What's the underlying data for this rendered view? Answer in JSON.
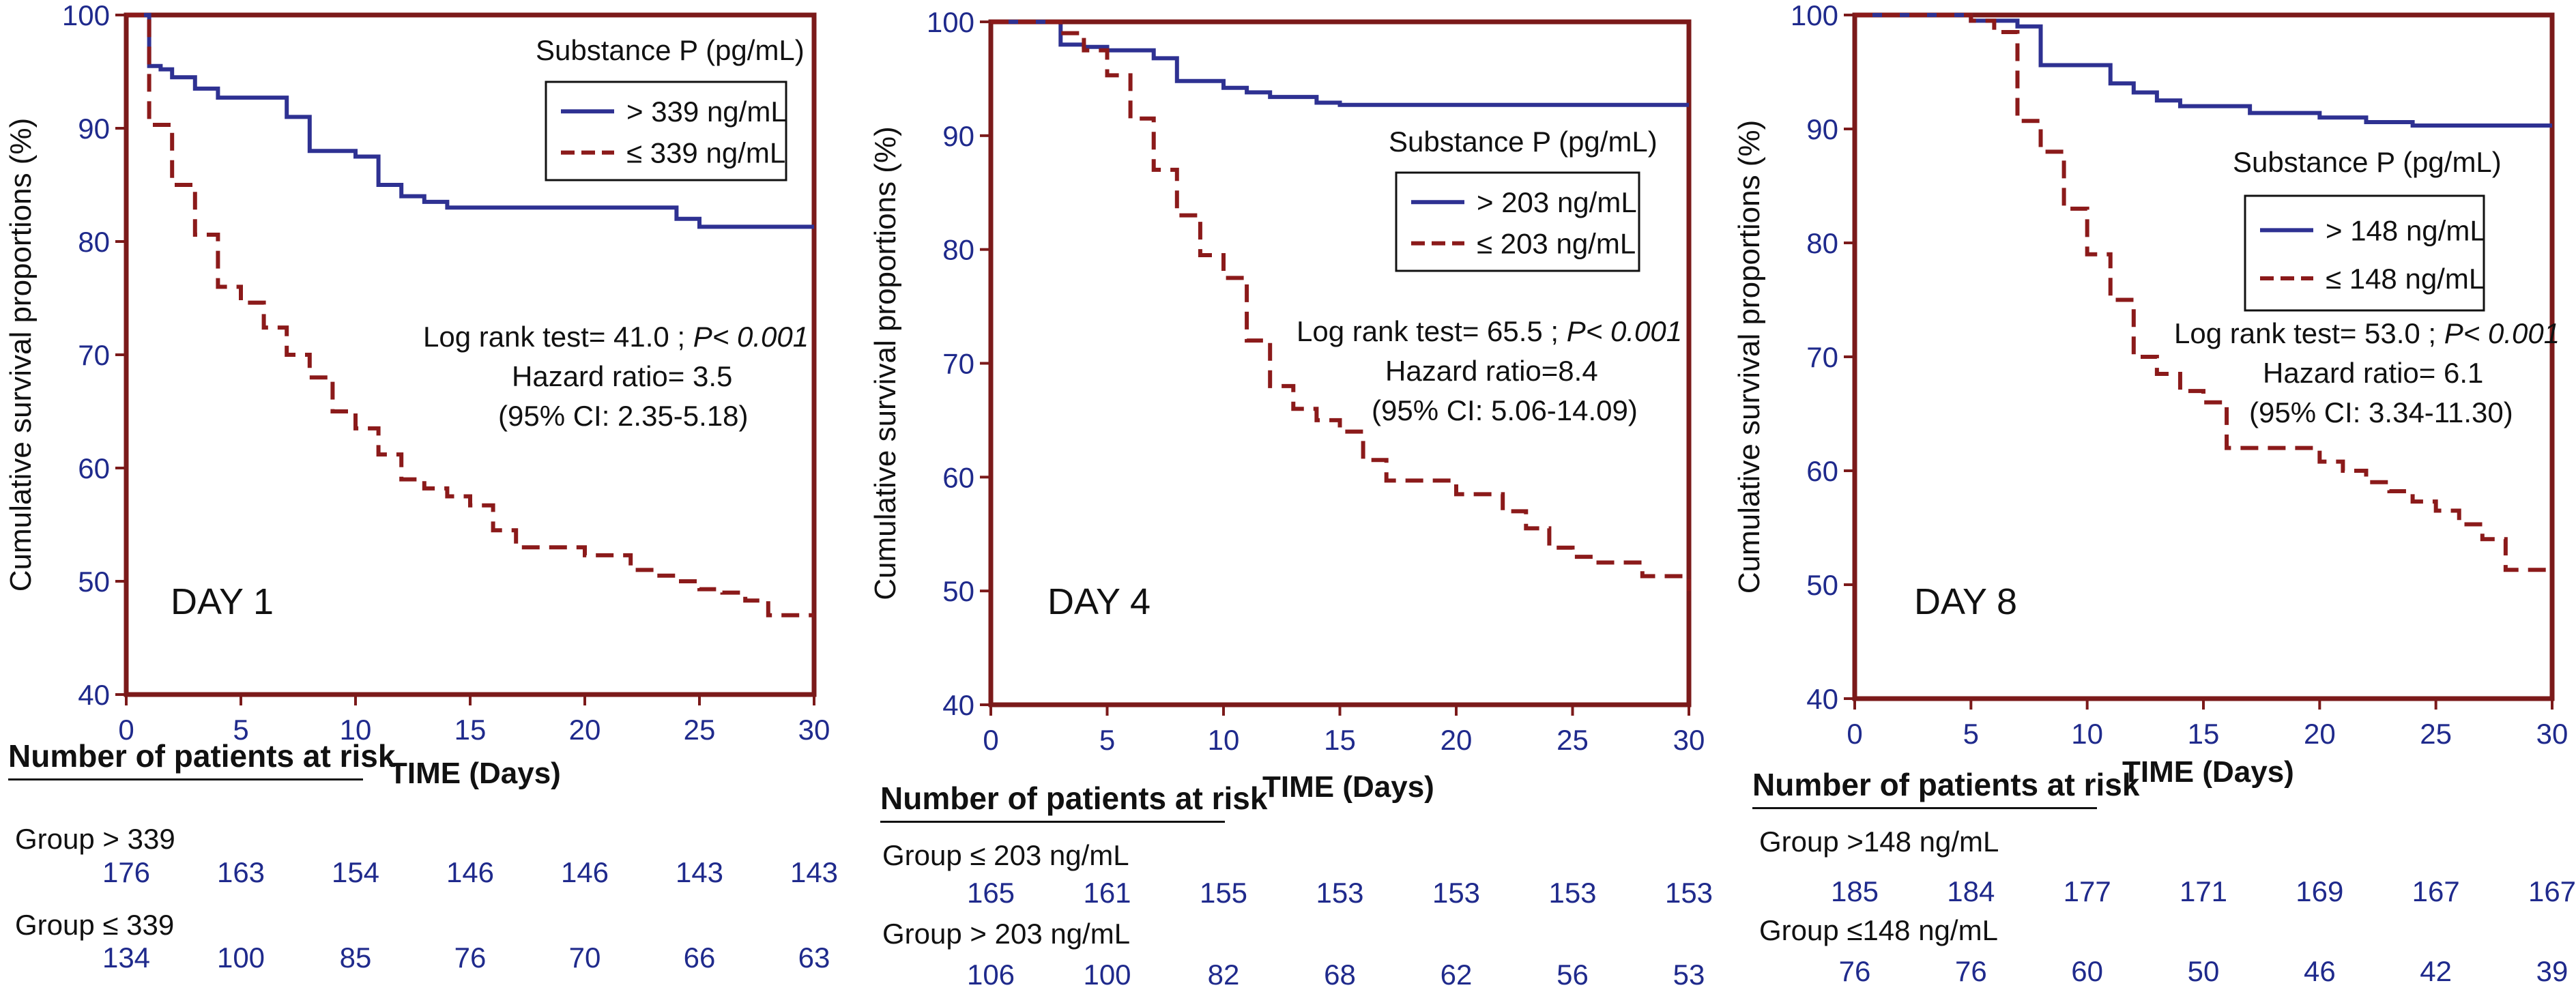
{
  "chart_data": [
    {
      "type": "line",
      "subtype": "kaplan-meier",
      "panel_label": "DAY 1",
      "xlabel": "TIME (Days)",
      "ylabel": "Cumulative survival proportions (%)",
      "xlim": [
        0,
        30
      ],
      "ylim": [
        40,
        100
      ],
      "xticks": [
        0,
        5,
        10,
        15,
        20,
        25,
        30
      ],
      "yticks": [
        40,
        50,
        60,
        70,
        80,
        90,
        100
      ],
      "legend_title": "Substance P (pg/mL)",
      "legend_position": "top-right",
      "stats": [
        "Log rank test= 41.0 ;",
        "P< 0.001",
        "Hazard ratio= 3.5",
        "(95% CI: 2.35-5.18)"
      ],
      "series": [
        {
          "name": "> 339 ng/mL",
          "color": "#2e3192",
          "dash": false,
          "x": [
            0,
            1,
            1.5,
            2,
            3,
            4,
            7,
            8,
            10,
            11,
            12,
            13,
            14,
            15,
            20,
            24,
            25,
            30
          ],
          "y": [
            100,
            95.5,
            95.2,
            94.5,
            93.5,
            92.7,
            91,
            88,
            87.5,
            85,
            84,
            83.5,
            83,
            83,
            83,
            82,
            81.3,
            81.3
          ]
        },
        {
          "name": "≤ 339 ng/mL",
          "color": "#8b1a1a",
          "dash": true,
          "x": [
            0,
            1,
            2,
            3,
            4,
            5,
            6,
            7,
            8,
            9,
            10,
            11,
            12,
            13,
            14,
            15,
            16,
            17,
            20,
            22,
            23,
            24,
            25,
            26,
            27,
            28,
            30
          ],
          "y": [
            100,
            90.3,
            85,
            80.6,
            76,
            74.6,
            72.4,
            70,
            68,
            65,
            63.5,
            61.2,
            59,
            58.2,
            57.5,
            56.7,
            54.5,
            53,
            52.3,
            51,
            50.5,
            50,
            49.3,
            49,
            48.3,
            47,
            47
          ]
        }
      ],
      "risk_table": {
        "title": "Number of patients at risk",
        "groups": [
          {
            "label": "Group > 339",
            "values": [
              176,
              163,
              154,
              146,
              146,
              143,
              143
            ]
          },
          {
            "label": "Group ≤ 339",
            "values": [
              134,
              100,
              85,
              76,
              70,
              66,
              63
            ]
          }
        ]
      }
    },
    {
      "type": "line",
      "subtype": "kaplan-meier",
      "panel_label": "DAY 4",
      "xlabel": "TIME (Days)",
      "ylabel": "Cumulative survival proportions (%)",
      "xlim": [
        0,
        30
      ],
      "ylim": [
        40,
        100
      ],
      "xticks": [
        0,
        5,
        10,
        15,
        20,
        25,
        30
      ],
      "yticks": [
        40,
        50,
        60,
        70,
        80,
        90,
        100
      ],
      "legend_title": "Substance P (pg/mL)",
      "legend_position": "center-right",
      "stats": [
        "Log rank test= 65.5 ;",
        "P< 0.001",
        "Hazard ratio=8.4",
        "(95% CI: 5.06-14.09)"
      ],
      "series": [
        {
          "name": "> 203 ng/mL",
          "color": "#2e3192",
          "dash": false,
          "x": [
            0,
            3,
            4,
            5,
            7,
            8,
            10,
            11,
            12,
            14,
            15,
            20,
            30
          ],
          "y": [
            100,
            98,
            97.8,
            97.5,
            96.8,
            94.8,
            94.2,
            93.8,
            93.4,
            92.9,
            92.7,
            92.7,
            92.7
          ]
        },
        {
          "name": "≤ 203 ng/mL",
          "color": "#8b1a1a",
          "dash": true,
          "x": [
            0,
            3,
            4,
            5,
            6,
            7,
            8,
            9,
            10,
            11,
            12,
            13,
            14,
            15,
            16,
            17,
            20,
            22,
            23,
            24,
            25,
            26,
            28,
            30
          ],
          "y": [
            100,
            99,
            97.5,
            95.3,
            91.5,
            87,
            83,
            79.5,
            77.5,
            72,
            68,
            66,
            65,
            64,
            61.5,
            59.7,
            58.5,
            57,
            55.5,
            53.8,
            53,
            52.5,
            51.3,
            50
          ]
        }
      ],
      "risk_table": {
        "title": "Number of patients at risk",
        "groups": [
          {
            "label": "Group ≤ 203  ng/mL",
            "values": [
              165,
              161,
              155,
              153,
              153,
              153,
              153
            ]
          },
          {
            "label": "Group > 203  ng/mL",
            "values": [
              106,
              100,
              82,
              68,
              62,
              56,
              53
            ]
          }
        ]
      }
    },
    {
      "type": "line",
      "subtype": "kaplan-meier",
      "panel_label": "DAY 8",
      "xlabel": "TIME (Days)",
      "ylabel": "Cumulative survival proportions (%)",
      "xlim": [
        0,
        30
      ],
      "ylim": [
        40,
        100
      ],
      "xticks": [
        0,
        5,
        10,
        15,
        20,
        25,
        30
      ],
      "yticks": [
        40,
        50,
        60,
        70,
        80,
        90,
        100
      ],
      "legend_title": "Substance P (pg/mL)",
      "legend_position": "center-right",
      "stats": [
        "Log rank test= 53.0 ;",
        "P< 0.001",
        "Hazard ratio= 6.1",
        "(95% CI: 3.34-11.30)"
      ],
      "series": [
        {
          "name": "> 148 ng/mL",
          "color": "#2e3192",
          "dash": false,
          "x": [
            0,
            5,
            7,
            8,
            11,
            12,
            13,
            14,
            17,
            20,
            22,
            24,
            30
          ],
          "y": [
            100,
            99.5,
            99,
            95.6,
            94,
            93.2,
            92.5,
            92,
            91.4,
            91,
            90.6,
            90.3,
            90.3
          ]
        },
        {
          "name": "≤ 148 ng/mL",
          "color": "#8b1a1a",
          "dash": true,
          "x": [
            0,
            5,
            6,
            7,
            8,
            9,
            10,
            11,
            12,
            13,
            14,
            15,
            16,
            20,
            21,
            22,
            23,
            24,
            25,
            26,
            27,
            28,
            30
          ],
          "y": [
            100,
            99.5,
            98.5,
            90.7,
            88,
            83,
            79,
            75,
            70,
            68.5,
            67,
            66,
            62,
            60.8,
            60,
            59,
            58.2,
            57.3,
            56.5,
            55.3,
            54,
            51.3,
            51.3
          ]
        }
      ],
      "risk_table": {
        "title": "Number of patients at risk",
        "groups": [
          {
            "label": "Group >148  ng/mL",
            "values": [
              185,
              184,
              177,
              171,
              169,
              167,
              167
            ]
          },
          {
            "label": "Group ≤148  ng/mL",
            "values": [
              76,
              76,
              60,
              50,
              46,
              42,
              39
            ]
          }
        ]
      }
    }
  ],
  "colors": {
    "frame": "#7b1a1a",
    "axis_text": "#1f2a8c",
    "high_group": "#2e3192",
    "low_group": "#8b1a1a"
  }
}
